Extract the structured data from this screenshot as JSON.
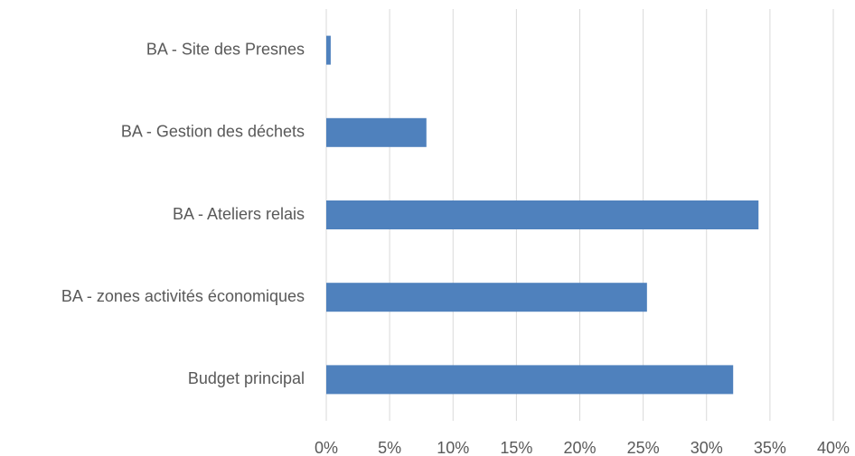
{
  "chart_data": {
    "type": "hbar",
    "categories": [
      "BA - Site des Presnes",
      "BA - Gestion des déchets",
      "BA - Ateliers relais",
      "BA - zones activités économiques",
      "Budget principal"
    ],
    "values": [
      0.35,
      7.9,
      34.1,
      25.3,
      32.1
    ],
    "color": "#4f81bd",
    "xlim": [
      0,
      40
    ],
    "xticks": [
      {
        "value": 0,
        "label": "0%"
      },
      {
        "value": 5,
        "label": "5%"
      },
      {
        "value": 10,
        "label": "10%"
      },
      {
        "value": 15,
        "label": "15%"
      },
      {
        "value": 20,
        "label": "20%"
      },
      {
        "value": 25,
        "label": "25%"
      },
      {
        "value": 30,
        "label": "30%"
      },
      {
        "value": 35,
        "label": "35%"
      },
      {
        "value": 40,
        "label": "40%"
      }
    ],
    "grid": true
  }
}
